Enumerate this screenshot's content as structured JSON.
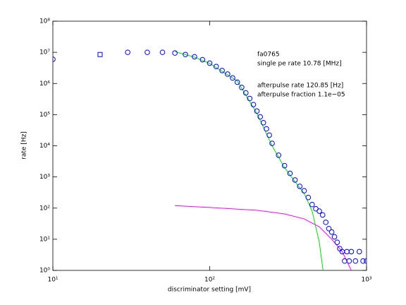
{
  "chart_data": {
    "type": "scatter",
    "xlabel": "discriminator setting [mV]",
    "ylabel": "rate [Hz]",
    "xscale": "log",
    "yscale": "log",
    "xlim": [
      10,
      1000
    ],
    "ylim": [
      1,
      100000000
    ],
    "xticks": [
      {
        "value": 10,
        "label": "10¹"
      },
      {
        "value": 100,
        "label": "10²"
      },
      {
        "value": 1000,
        "label": "10³"
      }
    ],
    "yticks": [
      {
        "value": 1,
        "label": "10⁰"
      },
      {
        "value": 10,
        "label": "10¹"
      },
      {
        "value": 100,
        "label": "10²"
      },
      {
        "value": 1000,
        "label": "10³"
      },
      {
        "value": 10000,
        "label": "10⁴"
      },
      {
        "value": 100000,
        "label": "10⁵"
      },
      {
        "value": 1000000,
        "label": "10⁶"
      },
      {
        "value": 10000000,
        "label": "10⁷"
      },
      {
        "value": 100000000,
        "label": "10⁸"
      }
    ],
    "annotations": [
      "fa0765",
      "single pe rate 10.78 [MHz]",
      "afterpulse rate 120.85 [Hz]",
      "afterpulse fraction 1.1e−05"
    ],
    "series": [
      {
        "type": "scatter",
        "marker": "square",
        "color": "#0000ff",
        "x": [
          20
        ],
        "values": [
          8500000
        ]
      },
      {
        "type": "scatter",
        "marker": "circle",
        "color": "#0000ff",
        "x": [
          10,
          30,
          40,
          50,
          60,
          70,
          80,
          90,
          100,
          110,
          120,
          130,
          140,
          150,
          160,
          170,
          180,
          190,
          200,
          210,
          220,
          230,
          240,
          250,
          275,
          300,
          325,
          350,
          375,
          400,
          425,
          450,
          475,
          500,
          525,
          550,
          575,
          600,
          625,
          650,
          675,
          700,
          725,
          750,
          775,
          800,
          850,
          900,
          950,
          1000
        ],
        "values": [
          6000000,
          10000000,
          10000000,
          10000000,
          9500000,
          8500000,
          7200000,
          5800000,
          4500000,
          3500000,
          2600000,
          2000000,
          1500000,
          1100000,
          750000,
          500000,
          330000,
          210000,
          130000,
          85000,
          55000,
          35000,
          22000,
          12000,
          5000,
          2300,
          1300,
          800,
          500,
          360,
          220,
          130,
          95,
          80,
          60,
          35,
          22,
          17,
          12,
          8,
          5,
          4,
          2,
          4,
          2,
          4,
          2,
          4,
          2,
          2
        ]
      },
      {
        "type": "line",
        "color": "#00dd00",
        "x": [
          60,
          80,
          100,
          150,
          200,
          250,
          300,
          350,
          400,
          450,
          500,
          528
        ],
        "values": [
          10500000,
          7000000,
          4400000,
          1200000,
          110000,
          10000,
          2000,
          700,
          300,
          80,
          8,
          1
        ]
      },
      {
        "type": "line",
        "color": "#ff00ff",
        "x": [
          60,
          100,
          200,
          300,
          400,
          500,
          600,
          700,
          800
        ],
        "values": [
          120,
          105,
          85,
          65,
          45,
          25,
          10,
          4,
          1
        ]
      }
    ]
  }
}
